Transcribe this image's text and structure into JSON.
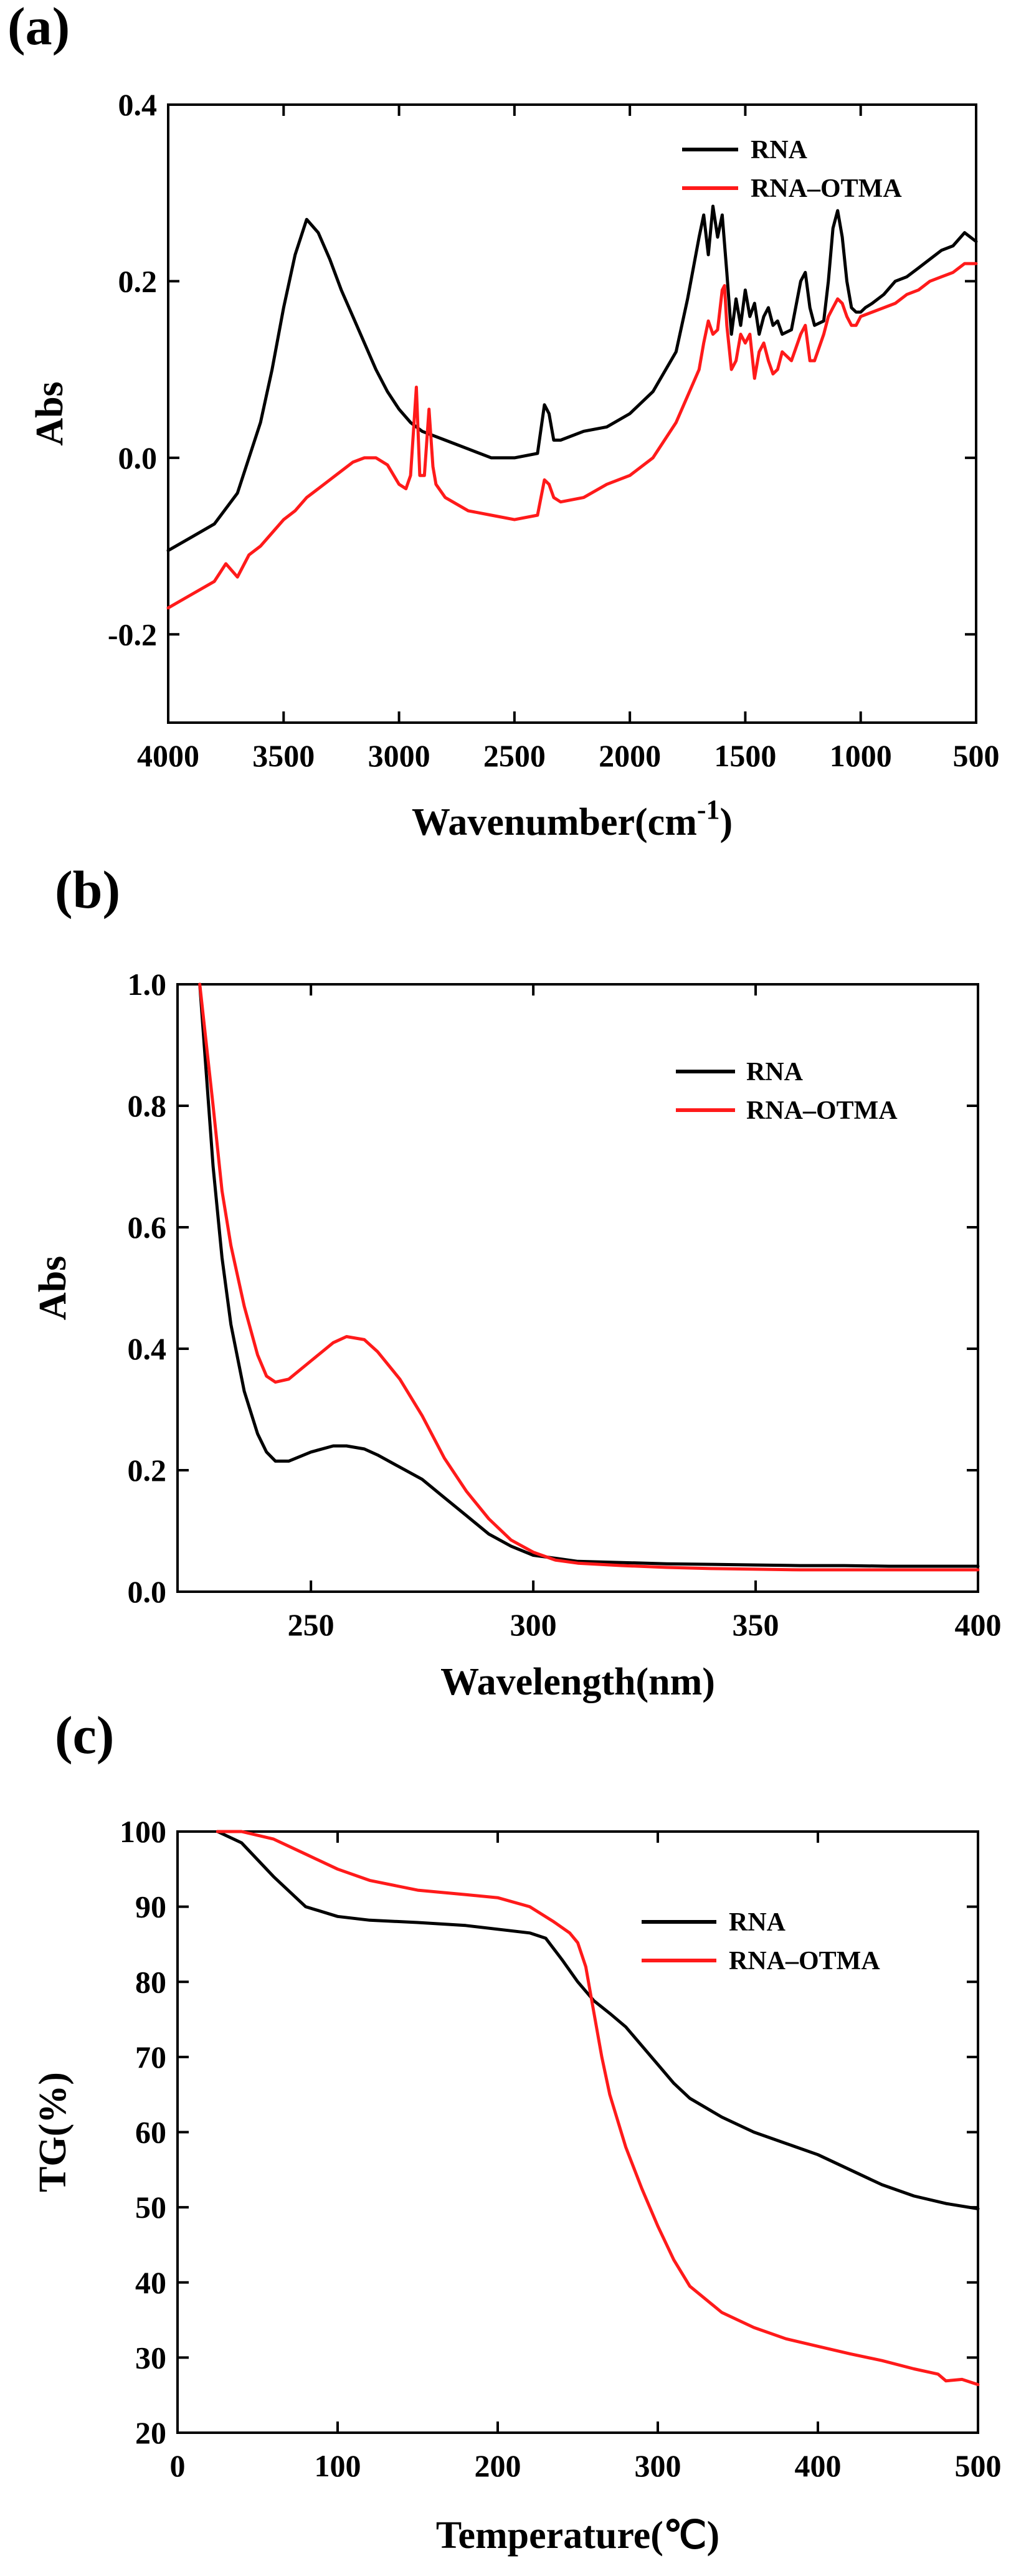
{
  "panels": [
    {
      "label": "(a)"
    },
    {
      "label": "(b)"
    },
    {
      "label": "(c)"
    }
  ],
  "colors": {
    "RNA": "#000000",
    "RNA–OTMA": "#ff1a1a"
  },
  "chart_data": [
    {
      "type": "line",
      "title": "",
      "xlabel": "Wavenumber(cm",
      "xlabel_superscript": "-1",
      "xlabel_suffix": ")",
      "ylabel": "Abs",
      "xlim": [
        4000,
        500
      ],
      "ylim": [
        -0.3,
        0.4
      ],
      "xticks": [
        4000,
        3500,
        3000,
        2500,
        2000,
        1500,
        1000,
        500
      ],
      "xtick_labels": [
        "4000",
        "3500",
        "3000",
        "2500",
        "2000",
        "1500",
        "1000",
        "500"
      ],
      "yticks": [
        -0.2,
        0.0,
        0.2,
        0.4
      ],
      "ytick_labels": [
        "-0.2",
        "0.0",
        "0.2",
        "0.4"
      ],
      "legend": "top-right",
      "series": [
        {
          "name": "RNA",
          "color": "#000000",
          "x": [
            4000,
            3900,
            3800,
            3700,
            3650,
            3600,
            3550,
            3500,
            3450,
            3400,
            3350,
            3300,
            3250,
            3200,
            3150,
            3100,
            3050,
            3000,
            2950,
            2900,
            2850,
            2800,
            2700,
            2600,
            2500,
            2400,
            2370,
            2350,
            2330,
            2300,
            2200,
            2100,
            2000,
            1900,
            1800,
            1750,
            1700,
            1680,
            1660,
            1640,
            1620,
            1600,
            1580,
            1560,
            1540,
            1520,
            1500,
            1480,
            1460,
            1440,
            1420,
            1400,
            1380,
            1360,
            1340,
            1300,
            1260,
            1240,
            1220,
            1200,
            1160,
            1140,
            1120,
            1100,
            1080,
            1060,
            1040,
            1020,
            1000,
            980,
            950,
            900,
            850,
            800,
            750,
            700,
            650,
            600,
            550,
            500
          ],
          "y": [
            -0.105,
            -0.09,
            -0.075,
            -0.04,
            0.0,
            0.04,
            0.1,
            0.17,
            0.23,
            0.27,
            0.255,
            0.225,
            0.19,
            0.16,
            0.13,
            0.1,
            0.075,
            0.055,
            0.04,
            0.03,
            0.025,
            0.02,
            0.01,
            0.0,
            0.0,
            0.005,
            0.06,
            0.05,
            0.02,
            0.02,
            0.03,
            0.035,
            0.05,
            0.075,
            0.12,
            0.18,
            0.25,
            0.275,
            0.23,
            0.285,
            0.25,
            0.275,
            0.21,
            0.14,
            0.18,
            0.15,
            0.19,
            0.16,
            0.175,
            0.14,
            0.16,
            0.17,
            0.15,
            0.155,
            0.14,
            0.145,
            0.2,
            0.21,
            0.17,
            0.15,
            0.155,
            0.2,
            0.26,
            0.28,
            0.25,
            0.2,
            0.17,
            0.165,
            0.165,
            0.17,
            0.175,
            0.185,
            0.2,
            0.205,
            0.215,
            0.225,
            0.235,
            0.24,
            0.255,
            0.245
          ]
        },
        {
          "name": "RNA–OTMA",
          "color": "#ff1a1a",
          "x": [
            4000,
            3900,
            3800,
            3750,
            3700,
            3650,
            3600,
            3550,
            3500,
            3450,
            3400,
            3350,
            3300,
            3250,
            3200,
            3150,
            3100,
            3050,
            3000,
            2970,
            2950,
            2925,
            2910,
            2890,
            2870,
            2853,
            2840,
            2800,
            2700,
            2600,
            2500,
            2400,
            2370,
            2350,
            2330,
            2300,
            2200,
            2100,
            2000,
            1900,
            1800,
            1750,
            1700,
            1680,
            1660,
            1640,
            1620,
            1600,
            1590,
            1580,
            1560,
            1540,
            1520,
            1500,
            1480,
            1460,
            1440,
            1420,
            1400,
            1380,
            1360,
            1340,
            1300,
            1260,
            1240,
            1220,
            1200,
            1160,
            1140,
            1120,
            1100,
            1080,
            1060,
            1040,
            1020,
            1000,
            950,
            900,
            850,
            800,
            750,
            700,
            650,
            600,
            550,
            500
          ],
          "y": [
            -0.17,
            -0.155,
            -0.14,
            -0.12,
            -0.135,
            -0.11,
            -0.1,
            -0.085,
            -0.07,
            -0.06,
            -0.045,
            -0.035,
            -0.025,
            -0.015,
            -0.005,
            0.0,
            0.0,
            -0.008,
            -0.03,
            -0.035,
            -0.02,
            0.08,
            -0.02,
            -0.02,
            0.055,
            -0.01,
            -0.03,
            -0.045,
            -0.06,
            -0.065,
            -0.07,
            -0.065,
            -0.025,
            -0.03,
            -0.045,
            -0.05,
            -0.045,
            -0.03,
            -0.02,
            0.0,
            0.04,
            0.07,
            0.1,
            0.13,
            0.155,
            0.14,
            0.145,
            0.19,
            0.195,
            0.15,
            0.1,
            0.11,
            0.14,
            0.13,
            0.14,
            0.09,
            0.12,
            0.13,
            0.11,
            0.095,
            0.1,
            0.12,
            0.11,
            0.14,
            0.15,
            0.11,
            0.11,
            0.14,
            0.16,
            0.17,
            0.18,
            0.175,
            0.16,
            0.15,
            0.15,
            0.16,
            0.165,
            0.17,
            0.175,
            0.185,
            0.19,
            0.2,
            0.205,
            0.21,
            0.22,
            0.22
          ]
        }
      ]
    },
    {
      "type": "line",
      "title": "",
      "xlabel": "Wavelength(nm)",
      "ylabel": "Abs",
      "xlim": [
        220,
        400
      ],
      "ylim": [
        0.0,
        1.0
      ],
      "xticks": [
        250,
        300,
        350,
        400
      ],
      "xtick_labels": [
        "250",
        "300",
        "350",
        "400"
      ],
      "yticks": [
        0.0,
        0.2,
        0.4,
        0.6,
        0.8,
        1.0
      ],
      "ytick_labels": [
        "0.0",
        "0.2",
        "0.4",
        "0.6",
        "0.8",
        "1.0"
      ],
      "legend": "top-right",
      "series": [
        {
          "name": "RNA",
          "color": "#000000",
          "x": [
            225,
            228,
            230,
            232,
            235,
            238,
            240,
            242,
            245,
            250,
            255,
            258,
            262,
            265,
            270,
            275,
            280,
            285,
            290,
            295,
            300,
            305,
            310,
            320,
            330,
            340,
            350,
            360,
            370,
            380,
            390,
            400
          ],
          "y": [
            1.0,
            0.7,
            0.55,
            0.44,
            0.33,
            0.26,
            0.23,
            0.215,
            0.215,
            0.23,
            0.24,
            0.24,
            0.235,
            0.225,
            0.205,
            0.185,
            0.155,
            0.125,
            0.095,
            0.075,
            0.06,
            0.055,
            0.05,
            0.048,
            0.046,
            0.045,
            0.044,
            0.043,
            0.043,
            0.042,
            0.042,
            0.042
          ]
        },
        {
          "name": "RNA–OTMA",
          "color": "#ff1a1a",
          "x": [
            225,
            228,
            230,
            232,
            235,
            238,
            240,
            242,
            245,
            250,
            255,
            258,
            262,
            265,
            270,
            275,
            280,
            285,
            290,
            295,
            300,
            305,
            310,
            320,
            330,
            340,
            350,
            360,
            370,
            380,
            390,
            400
          ],
          "y": [
            1.0,
            0.8,
            0.66,
            0.57,
            0.47,
            0.39,
            0.355,
            0.345,
            0.35,
            0.38,
            0.41,
            0.42,
            0.415,
            0.395,
            0.35,
            0.29,
            0.22,
            0.165,
            0.12,
            0.085,
            0.065,
            0.052,
            0.047,
            0.043,
            0.04,
            0.038,
            0.037,
            0.036,
            0.036,
            0.036,
            0.036,
            0.036
          ]
        }
      ]
    },
    {
      "type": "line",
      "title": "",
      "xlabel": "Temperature(℃)",
      "ylabel": "TG(%)",
      "xlim": [
        0,
        500
      ],
      "ylim": [
        20,
        100
      ],
      "xticks": [
        0,
        100,
        200,
        300,
        400,
        500
      ],
      "xtick_labels": [
        "0",
        "100",
        "200",
        "300",
        "400",
        "500"
      ],
      "yticks": [
        20,
        30,
        40,
        50,
        60,
        70,
        80,
        90,
        100
      ],
      "ytick_labels": [
        "20",
        "30",
        "40",
        "50",
        "60",
        "70",
        "80",
        "90",
        "100"
      ],
      "legend": "top-right",
      "series": [
        {
          "name": "RNA",
          "color": "#000000",
          "x": [
            25,
            40,
            60,
            80,
            100,
            120,
            150,
            180,
            200,
            220,
            230,
            240,
            250,
            260,
            270,
            280,
            290,
            300,
            310,
            320,
            340,
            360,
            380,
            400,
            420,
            440,
            460,
            480,
            500
          ],
          "y": [
            100,
            98.5,
            94,
            90,
            88.7,
            88.2,
            87.9,
            87.5,
            87,
            86.5,
            85.8,
            83,
            80,
            77.5,
            75.8,
            74,
            71.5,
            69,
            66.5,
            64.5,
            62,
            60,
            58.5,
            57,
            55,
            53,
            51.5,
            50.5,
            49.8
          ]
        },
        {
          "name": "RNA–OTMA",
          "color": "#ff1a1a",
          "x": [
            25,
            40,
            60,
            80,
            100,
            120,
            150,
            180,
            200,
            220,
            235,
            245,
            250,
            255,
            260,
            265,
            270,
            280,
            290,
            300,
            310,
            320,
            340,
            360,
            380,
            400,
            420,
            440,
            460,
            475,
            480,
            490,
            500
          ],
          "y": [
            100,
            100,
            99,
            97,
            95,
            93.5,
            92.2,
            91.6,
            91.2,
            90,
            88,
            86.5,
            85.2,
            82,
            76,
            70,
            65,
            58,
            52.5,
            47.5,
            43,
            39.5,
            36,
            34,
            32.5,
            31.5,
            30.5,
            29.6,
            28.5,
            27.8,
            26.9,
            27.1,
            26.4
          ]
        }
      ]
    }
  ]
}
